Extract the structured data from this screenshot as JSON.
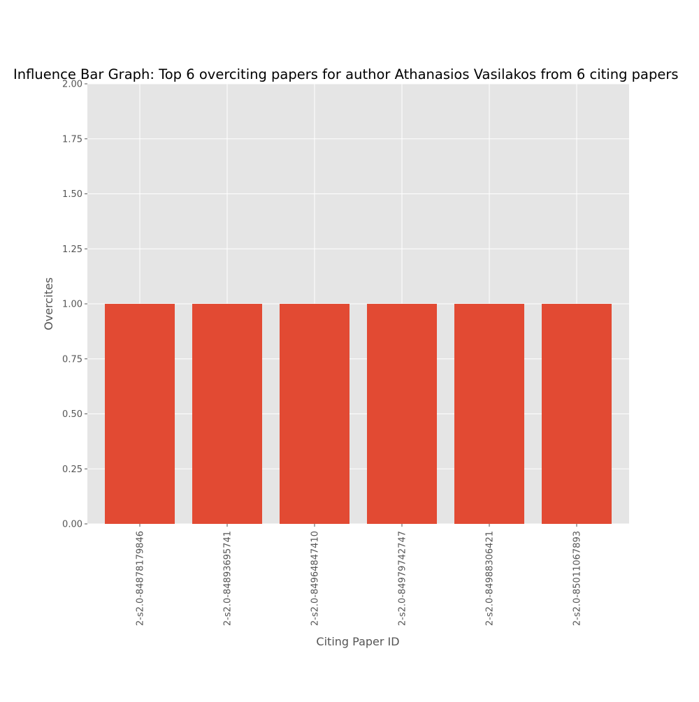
{
  "chart_data": {
    "type": "bar",
    "title": "Influence Bar Graph: Top 6 overciting papers for author Athanasios Vasilakos from 6 citing papers",
    "xlabel": "Citing Paper ID",
    "ylabel": "Overcites",
    "categories": [
      "2-s2.0-84878179846",
      "2-s2.0-84893695741",
      "2-s2.0-84964847410",
      "2-s2.0-84979742747",
      "2-s2.0-84988306421",
      "2-s2.0-85011067893"
    ],
    "values": [
      1,
      1,
      1,
      1,
      1,
      1
    ],
    "ylim": [
      0,
      2
    ],
    "yticks": [
      "0.00",
      "0.25",
      "0.50",
      "0.75",
      "1.00",
      "1.25",
      "1.50",
      "1.75",
      "2.00"
    ],
    "grid": true,
    "legend": "none",
    "colors": {
      "bar": "#E24A33",
      "plot_background": "#E5E5E5",
      "grid": "#FFFFFF"
    }
  }
}
